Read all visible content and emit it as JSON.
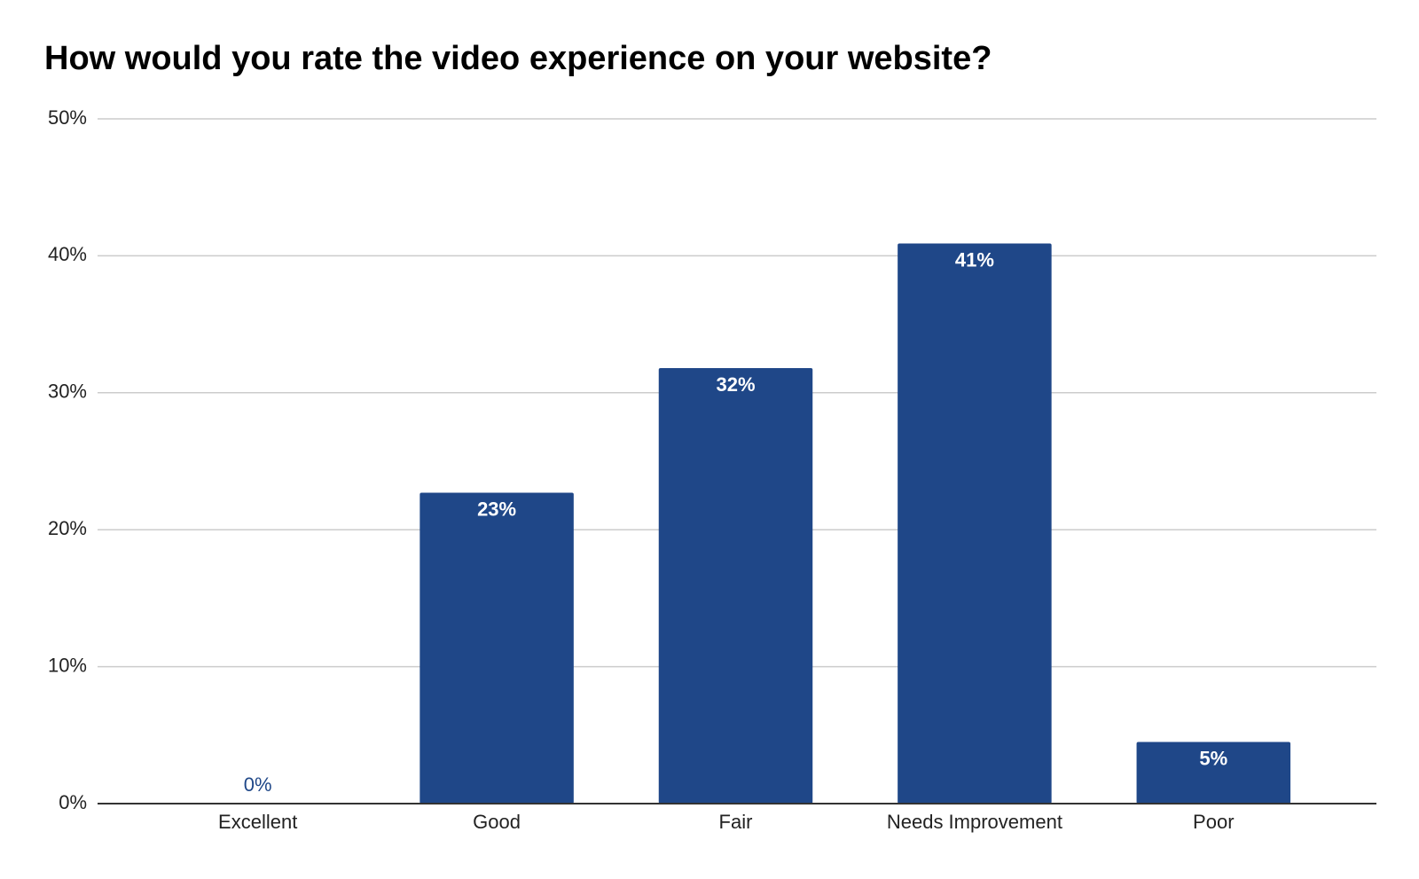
{
  "chart_data": {
    "type": "bar",
    "title": "How would you rate the video experience on your website?",
    "categories": [
      "Excellent",
      "Good",
      "Fair",
      "Needs Improvement",
      "Poor"
    ],
    "values": [
      0,
      22.7,
      31.8,
      40.9,
      4.5
    ],
    "value_labels": [
      "0%",
      "23%",
      "32%",
      "41%",
      "5%"
    ],
    "color": "#1f4788",
    "ylim": [
      0,
      50
    ],
    "yticks": [
      {
        "value": 0,
        "label": "0%"
      },
      {
        "value": 10,
        "label": "10%"
      },
      {
        "value": 20,
        "label": "20%"
      },
      {
        "value": 30,
        "label": "30%"
      },
      {
        "value": 40,
        "label": "40%"
      },
      {
        "value": 50,
        "label": "50%"
      }
    ],
    "grid": true
  }
}
